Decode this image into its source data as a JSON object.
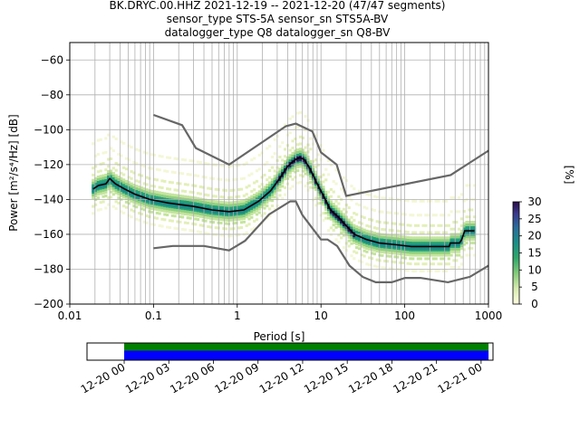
{
  "header": {
    "line1": "BK.DRYC.00.HHZ   2021-12-19 -- 2021-12-20  (47/47 segments)",
    "line2": "sensor_type STS-5A sensor_sn STS5A-BV",
    "line3": "datalogger_type Q8 datalogger_sn Q8-BV"
  },
  "chart_data": [
    {
      "type": "heatmap",
      "title": "",
      "xlabel": "Period [s]",
      "ylabel": "Power [m²/s⁴/Hz] [dB]",
      "xscale": "log",
      "xlim": [
        0.01,
        1000
      ],
      "ylim": [
        -200,
        -50
      ],
      "grid": true,
      "x_ticks": [
        0.01,
        0.1,
        1,
        10,
        100,
        1000
      ],
      "x_tick_labels": [
        "0.01",
        "0.1",
        "1",
        "10",
        "100",
        "1000"
      ],
      "y_ticks": [
        -200,
        -180,
        -160,
        -140,
        -120,
        -100,
        -80,
        -60
      ],
      "y_tick_labels": [
        "−200",
        "−180",
        "−160",
        "−140",
        "−120",
        "−100",
        "−80",
        "−60"
      ],
      "colorbar": {
        "label": "[%]",
        "min": 0,
        "max": 30,
        "ticks": [
          0,
          5,
          10,
          15,
          20,
          25,
          30
        ],
        "tick_labels": [
          "0",
          "5",
          "10",
          "15",
          "20",
          "25",
          "30"
        ]
      },
      "series": [
        {
          "role": "mode",
          "color": "#000000",
          "points": [
            [
              0.019,
              -134
            ],
            [
              0.022,
              -132
            ],
            [
              0.027,
              -131
            ],
            [
              0.03,
              -128
            ],
            [
              0.035,
              -131
            ],
            [
              0.045,
              -134
            ],
            [
              0.06,
              -137
            ],
            [
              0.09,
              -140
            ],
            [
              0.15,
              -142
            ],
            [
              0.3,
              -144
            ],
            [
              0.5,
              -146
            ],
            [
              0.8,
              -147
            ],
            [
              1.2,
              -146
            ],
            [
              1.8,
              -141
            ],
            [
              2.5,
              -135
            ],
            [
              3.2,
              -128
            ],
            [
              4.0,
              -121
            ],
            [
              5.0,
              -117
            ],
            [
              5.6,
              -116
            ],
            [
              6.3,
              -117
            ],
            [
              7.5,
              -123
            ],
            [
              9.0,
              -131
            ],
            [
              11,
              -139
            ],
            [
              13,
              -146
            ],
            [
              16,
              -150
            ],
            [
              20,
              -155
            ],
            [
              25,
              -160
            ],
            [
              35,
              -163
            ],
            [
              50,
              -165
            ],
            [
              80,
              -166
            ],
            [
              120,
              -167
            ],
            [
              200,
              -167
            ],
            [
              300,
              -167
            ],
            [
              340,
              -167
            ],
            [
              350,
              -165
            ],
            [
              450,
              -165
            ],
            [
              480,
              -163
            ],
            [
              520,
              -158
            ],
            [
              680,
              -158
            ]
          ]
        },
        {
          "role": "high-noise-model",
          "color": "#666666",
          "points": [
            [
              0.1,
              -91.5
            ],
            [
              0.22,
              -97.4
            ],
            [
              0.32,
              -110.5
            ],
            [
              0.8,
              -120
            ],
            [
              3.8,
              -98
            ],
            [
              5.0,
              -96.5
            ],
            [
              7.9,
              -101
            ],
            [
              10,
              -113
            ],
            [
              15.4,
              -120
            ],
            [
              20,
              -138
            ],
            [
              354,
              -126
            ],
            [
              1000,
              -112
            ]
          ]
        },
        {
          "role": "low-noise-model",
          "color": "#666666",
          "points": [
            [
              0.1,
              -168
            ],
            [
              0.17,
              -166.7
            ],
            [
              0.4,
              -166.7
            ],
            [
              0.8,
              -169.2
            ],
            [
              1.24,
              -163.7
            ],
            [
              2.4,
              -148.6
            ],
            [
              4.3,
              -141.1
            ],
            [
              5.0,
              -141.1
            ],
            [
              6.0,
              -149
            ],
            [
              10,
              -163
            ],
            [
              12,
              -163
            ],
            [
              15.6,
              -166.7
            ],
            [
              21.9,
              -178
            ],
            [
              31.6,
              -184.5
            ],
            [
              45,
              -187.5
            ],
            [
              70,
              -187.5
            ],
            [
              101,
              -185
            ],
            [
              154,
              -185
            ],
            [
              328,
              -187.5
            ],
            [
              600,
              -184.4
            ],
            [
              1000,
              -178
            ]
          ]
        }
      ]
    },
    {
      "type": "bar",
      "title": "",
      "xlabel": "",
      "ylabel": "",
      "x_tick_labels": [
        "12-20 00",
        "12-20 03",
        "12-20 06",
        "12-20 09",
        "12-20 12",
        "12-20 15",
        "12-20 18",
        "12-20 21",
        "12-21 00"
      ],
      "xlim": [
        "12-19 21:30",
        "12-21 00:48"
      ],
      "segments": [
        {
          "row": "upper",
          "color": "#008000",
          "start": "12-20 00:00",
          "end": "12-21 00:30"
        },
        {
          "row": "lower",
          "color": "#0000ff",
          "start": "12-20 00:00",
          "end": "12-21 00:30"
        }
      ]
    }
  ]
}
